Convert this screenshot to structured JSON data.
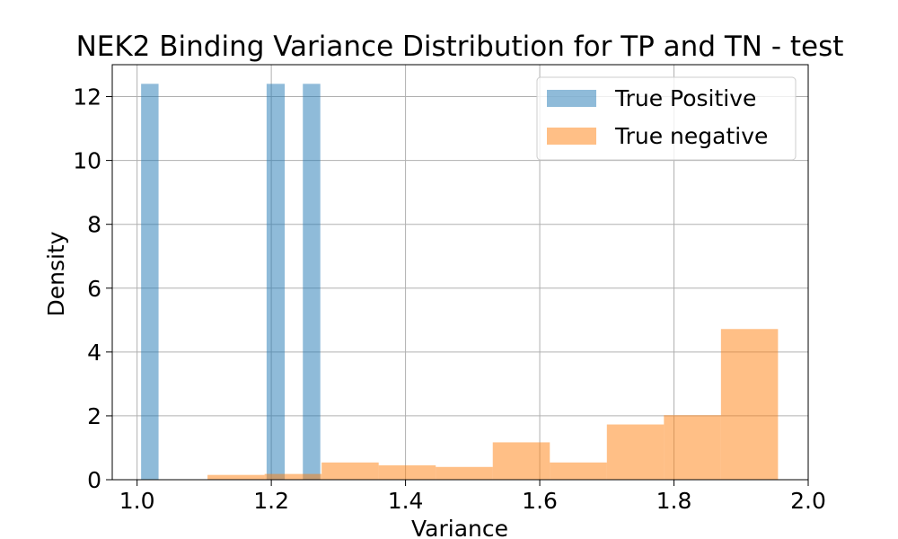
{
  "chart_data": {
    "type": "bar",
    "title": "NEK2 Binding Variance Distribution for TP and TN - test",
    "xlabel": "Variance",
    "ylabel": "Density",
    "xlim": [
      0.963,
      2.0
    ],
    "ylim": [
      0,
      13.0
    ],
    "xticks": [
      "1.0",
      "1.2",
      "1.4",
      "1.6",
      "1.8",
      "2.0"
    ],
    "yticks": [
      "0",
      "2",
      "4",
      "6",
      "8",
      "10",
      "12"
    ],
    "grid": true,
    "legend_position": "top-right",
    "series": [
      {
        "name": "True Positive",
        "color": "#1f77b4",
        "opacity": 0.5,
        "bins": [
          {
            "x0": 1.006,
            "x1": 1.032,
            "y": 12.4
          },
          {
            "x0": 1.032,
            "x1": 1.059,
            "y": 0
          },
          {
            "x0": 1.059,
            "x1": 1.086,
            "y": 0
          },
          {
            "x0": 1.086,
            "x1": 1.113,
            "y": 0
          },
          {
            "x0": 1.113,
            "x1": 1.14,
            "y": 0
          },
          {
            "x0": 1.14,
            "x1": 1.166,
            "y": 0
          },
          {
            "x0": 1.166,
            "x1": 1.193,
            "y": 0
          },
          {
            "x0": 1.193,
            "x1": 1.22,
            "y": 12.4
          },
          {
            "x0": 1.22,
            "x1": 1.247,
            "y": 0
          },
          {
            "x0": 1.247,
            "x1": 1.273,
            "y": 12.4
          }
        ]
      },
      {
        "name": "True negative",
        "color": "#ff7f0e",
        "opacity": 0.5,
        "bins": [
          {
            "x0": 1.105,
            "x1": 1.19,
            "y": 0.15
          },
          {
            "x0": 1.19,
            "x1": 1.275,
            "y": 0.18
          },
          {
            "x0": 1.275,
            "x1": 1.36,
            "y": 0.54
          },
          {
            "x0": 1.36,
            "x1": 1.445,
            "y": 0.45
          },
          {
            "x0": 1.445,
            "x1": 1.53,
            "y": 0.4
          },
          {
            "x0": 1.53,
            "x1": 1.615,
            "y": 1.17
          },
          {
            "x0": 1.615,
            "x1": 1.7,
            "y": 0.54
          },
          {
            "x0": 1.7,
            "x1": 1.785,
            "y": 1.73
          },
          {
            "x0": 1.785,
            "x1": 1.87,
            "y": 2.02
          },
          {
            "x0": 1.87,
            "x1": 1.955,
            "y": 4.72
          }
        ]
      }
    ]
  }
}
